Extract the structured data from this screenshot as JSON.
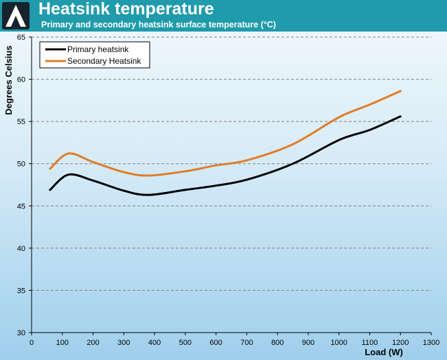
{
  "header": {
    "title": "Heatsink temperature",
    "subtitle": "Primary and secondary heatsink surface temperature (°C)"
  },
  "colors": {
    "header_bg": "#1f9bab",
    "primary": "#000000",
    "secondary": "#e07c28",
    "grid": "#7f7f7f"
  },
  "chart_data": {
    "type": "line",
    "xlabel": "Load (W)",
    "ylabel": "Degrees Celsius",
    "xlim": [
      0,
      1300
    ],
    "ylim": [
      30,
      65
    ],
    "xticks": [
      0,
      100,
      200,
      300,
      400,
      500,
      600,
      700,
      800,
      900,
      1000,
      1100,
      1200,
      1300
    ],
    "yticks": [
      30,
      35,
      40,
      45,
      50,
      55,
      60,
      65
    ],
    "grid": "horizontal dashed",
    "legend_position": "top-left",
    "series": [
      {
        "name": "Primary heatsink",
        "color": "#000000",
        "x": [
          60,
          120,
          200,
          300,
          380,
          500,
          600,
          700,
          850,
          1000,
          1100,
          1200
        ],
        "y": [
          46.9,
          48.7,
          48.0,
          46.8,
          46.3,
          46.9,
          47.4,
          48.1,
          50.0,
          52.8,
          54.0,
          55.6
        ]
      },
      {
        "name": "Secondary Heatsink",
        "color": "#e07c28",
        "x": [
          60,
          120,
          200,
          300,
          380,
          500,
          600,
          700,
          850,
          1000,
          1100,
          1200
        ],
        "y": [
          49.4,
          51.2,
          50.2,
          49.0,
          48.6,
          49.1,
          49.8,
          50.4,
          52.3,
          55.5,
          57.0,
          58.6
        ]
      }
    ]
  }
}
